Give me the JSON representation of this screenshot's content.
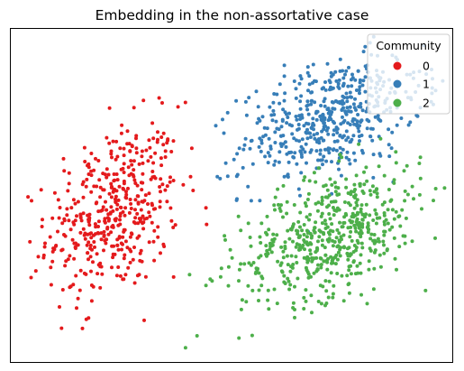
{
  "chart_data": {
    "type": "scatter",
    "title": "Embedding in the non-assortative case",
    "xlabel": "",
    "ylabel": "",
    "axes_ticks_visible": false,
    "grid": false,
    "legend": {
      "title": "Community",
      "placement": "top-right",
      "entries": [
        "0",
        "1",
        "2"
      ]
    },
    "series": [
      {
        "name": "0",
        "color": "#e41a1c",
        "point_count": 450,
        "center": [
          -2.0,
          -0.3
        ],
        "spread": [
          0.55,
          0.75
        ],
        "tilt": 0.3
      },
      {
        "name": "1",
        "color": "#377eb8",
        "point_count": 520,
        "center": [
          1.6,
          1.4
        ],
        "spread": [
          0.75,
          0.5
        ],
        "tilt": 0.5
      },
      {
        "name": "2",
        "color": "#4daf4a",
        "point_count": 560,
        "center": [
          1.6,
          -0.7
        ],
        "spread": [
          0.75,
          0.55
        ],
        "tilt": 0.5
      }
    ],
    "xlim": [
      -3.7,
      3.6
    ],
    "ylim": [
      -3.0,
      3.0
    ]
  }
}
